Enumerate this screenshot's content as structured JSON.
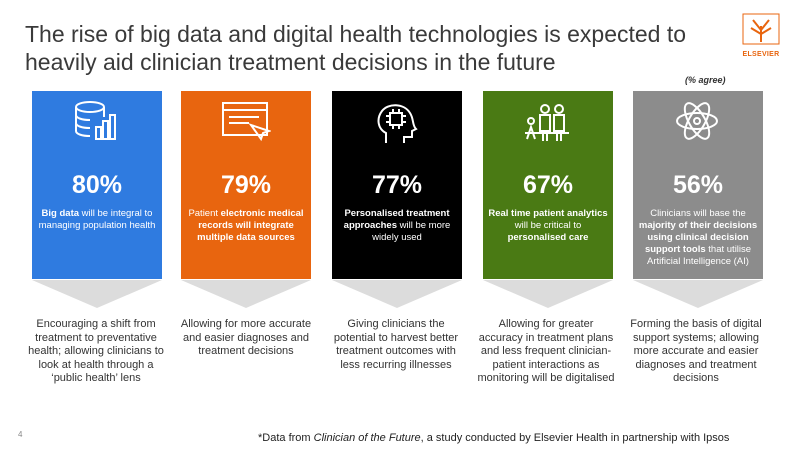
{
  "header": {
    "title": "The rise of big data and digital health technologies is expected to heavily aid clinician treatment decisions in the future",
    "logo": "ELSEVIER",
    "note": "(% agree)"
  },
  "cards": [
    {
      "percent": "80%",
      "color": "#2f7be0",
      "description": [
        {
          "text": "Big data",
          "bold": true
        },
        {
          "text": " will be integral to managing population health"
        }
      ],
      "outcome": "Encouraging a shift from treatment to preventative health; allowing clinicians to look at health through a ‘public health’ lens"
    },
    {
      "percent": "79%",
      "color": "#e8650f",
      "description": [
        {
          "text": "Patient "
        },
        {
          "text": "electronic medical records will integrate multiple data sources",
          "bold": true
        }
      ],
      "outcome": "Allowing for more accurate and easier diagnoses and treatment decisions"
    },
    {
      "percent": "77%",
      "color": "#000000",
      "description": [
        {
          "text": "Personalised treatment approaches",
          "bold": true
        },
        {
          "text": " will be more widely used"
        }
      ],
      "outcome": "Giving clinicians the potential to harvest better treatment outcomes with less recurring illnesses"
    },
    {
      "percent": "67%",
      "color": "#4a7a14",
      "description": [
        {
          "text": "Real time patient analytics",
          "bold": true
        },
        {
          "text": " will be critical to "
        },
        {
          "text": "personalised care",
          "bold": true
        }
      ],
      "outcome": "Allowing for greater accuracy in treatment plans and less frequent clinician-patient interactions as monitoring will be digitalised"
    },
    {
      "percent": "56%",
      "color": "#8c8c8c",
      "description": [
        {
          "text": "Clinicians will base the "
        },
        {
          "text": "majority of their decisions using clinical decision support tools",
          "bold": true
        },
        {
          "text": " that utilise Artificial Intelligence (AI)"
        }
      ],
      "outcome": "Forming the basis of digital support systems; allowing more accurate and easier diagnoses and treatment decisions"
    }
  ],
  "footer": {
    "page": "4",
    "source": [
      {
        "text": "*Data from "
      },
      {
        "text": "Clinician of the Future",
        "italic": true
      },
      {
        "text": ", a study conducted by Elsevier Health in partnership with Ipsos"
      }
    ]
  }
}
